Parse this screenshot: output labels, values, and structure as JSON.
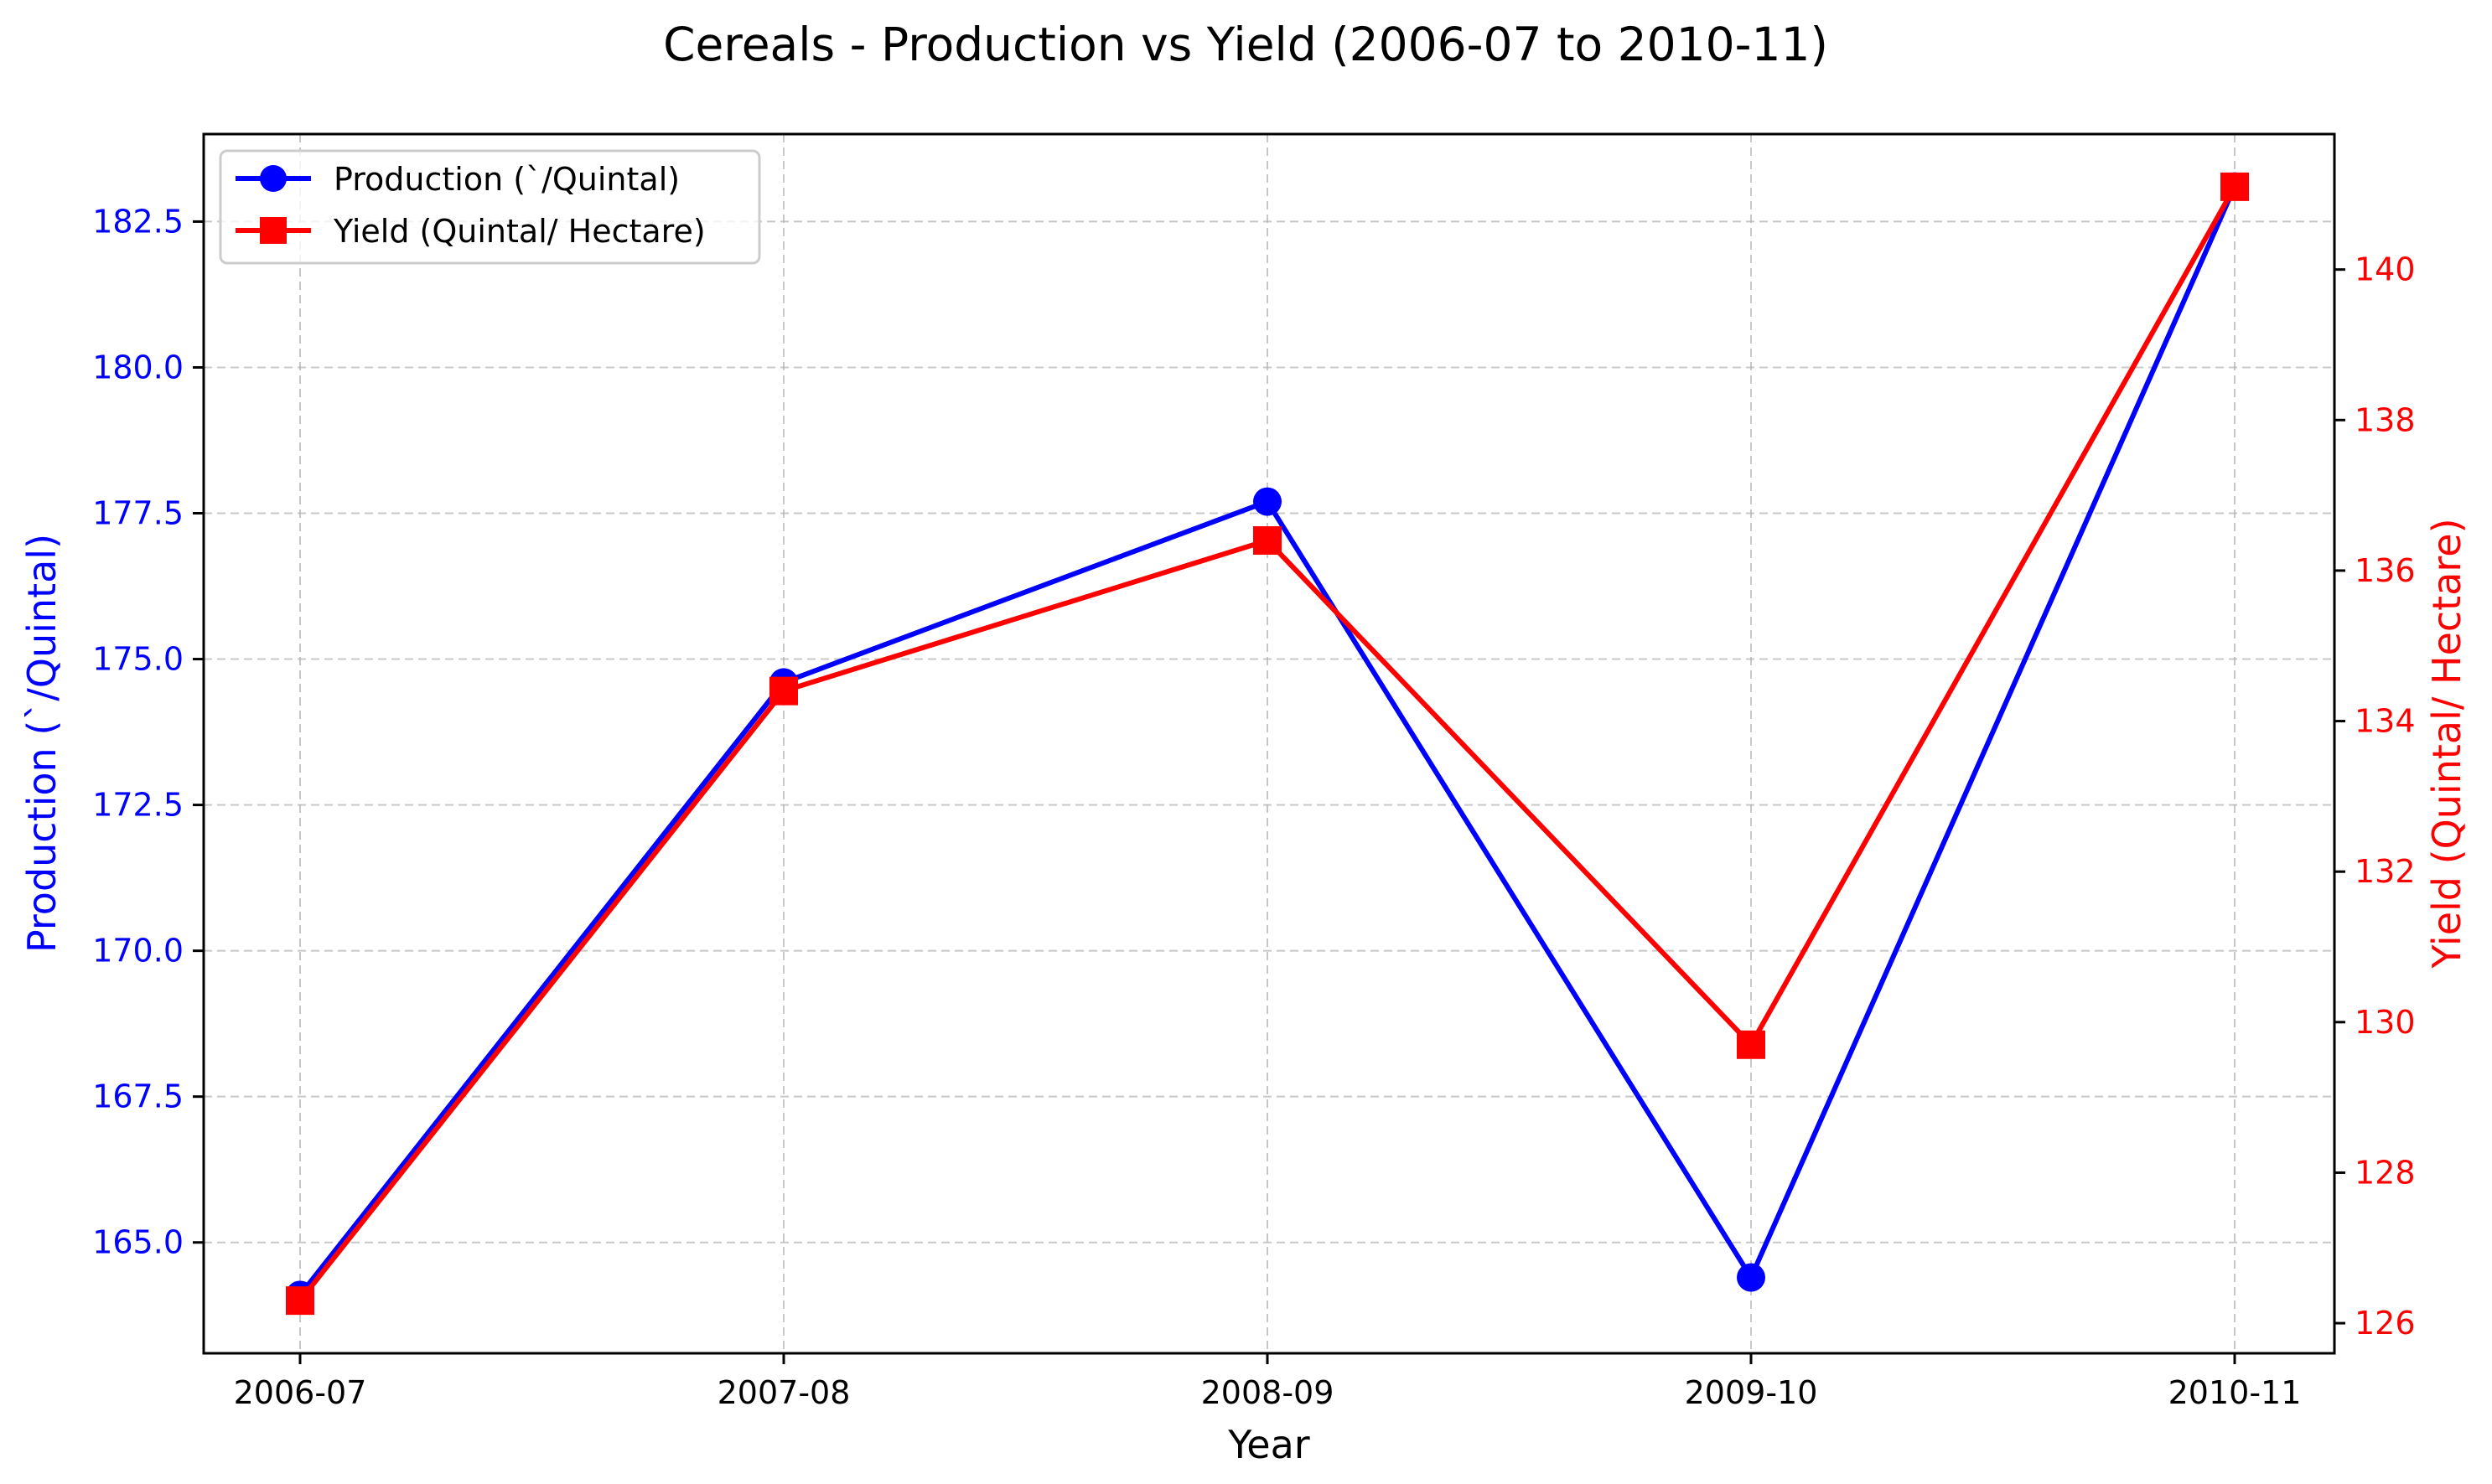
{
  "chart_data": {
    "type": "line",
    "title": "Cereals - Production vs Yield (2006-07 to 2010-11)",
    "xlabel": "Year",
    "categories": [
      "2006-07",
      "2007-08",
      "2008-09",
      "2009-10",
      "2010-11"
    ],
    "y_left": {
      "label": "Production (`/Quintal)",
      "range": [
        163.1,
        184.0
      ],
      "ticks": [
        165.0,
        167.5,
        170.0,
        172.5,
        175.0,
        177.5,
        180.0,
        182.5
      ],
      "tick_labels": [
        "165.0",
        "167.5",
        "170.0",
        "172.5",
        "175.0",
        "177.5",
        "180.0",
        "182.5"
      ],
      "color": "#0000ff"
    },
    "y_right": {
      "label": "Yield (Quintal/ Hectare)",
      "range": [
        125.6,
        141.8
      ],
      "ticks": [
        126,
        128,
        130,
        132,
        134,
        136,
        138,
        140
      ],
      "tick_labels": [
        "126",
        "128",
        "130",
        "132",
        "134",
        "136",
        "138",
        "140"
      ],
      "color": "#ff0000"
    },
    "series": [
      {
        "name": "Production (`/Quintal)",
        "axis": "left",
        "color": "#0000ff",
        "marker": "circle",
        "values": [
          164.1,
          174.6,
          177.7,
          164.4,
          183.1
        ]
      },
      {
        "name": "Yield (Quintal/ Hectare)",
        "axis": "right",
        "color": "#ff0000",
        "marker": "square",
        "values": [
          126.3,
          134.4,
          136.4,
          129.7,
          141.1
        ]
      }
    ],
    "grid": true,
    "legend": "upper-left"
  }
}
